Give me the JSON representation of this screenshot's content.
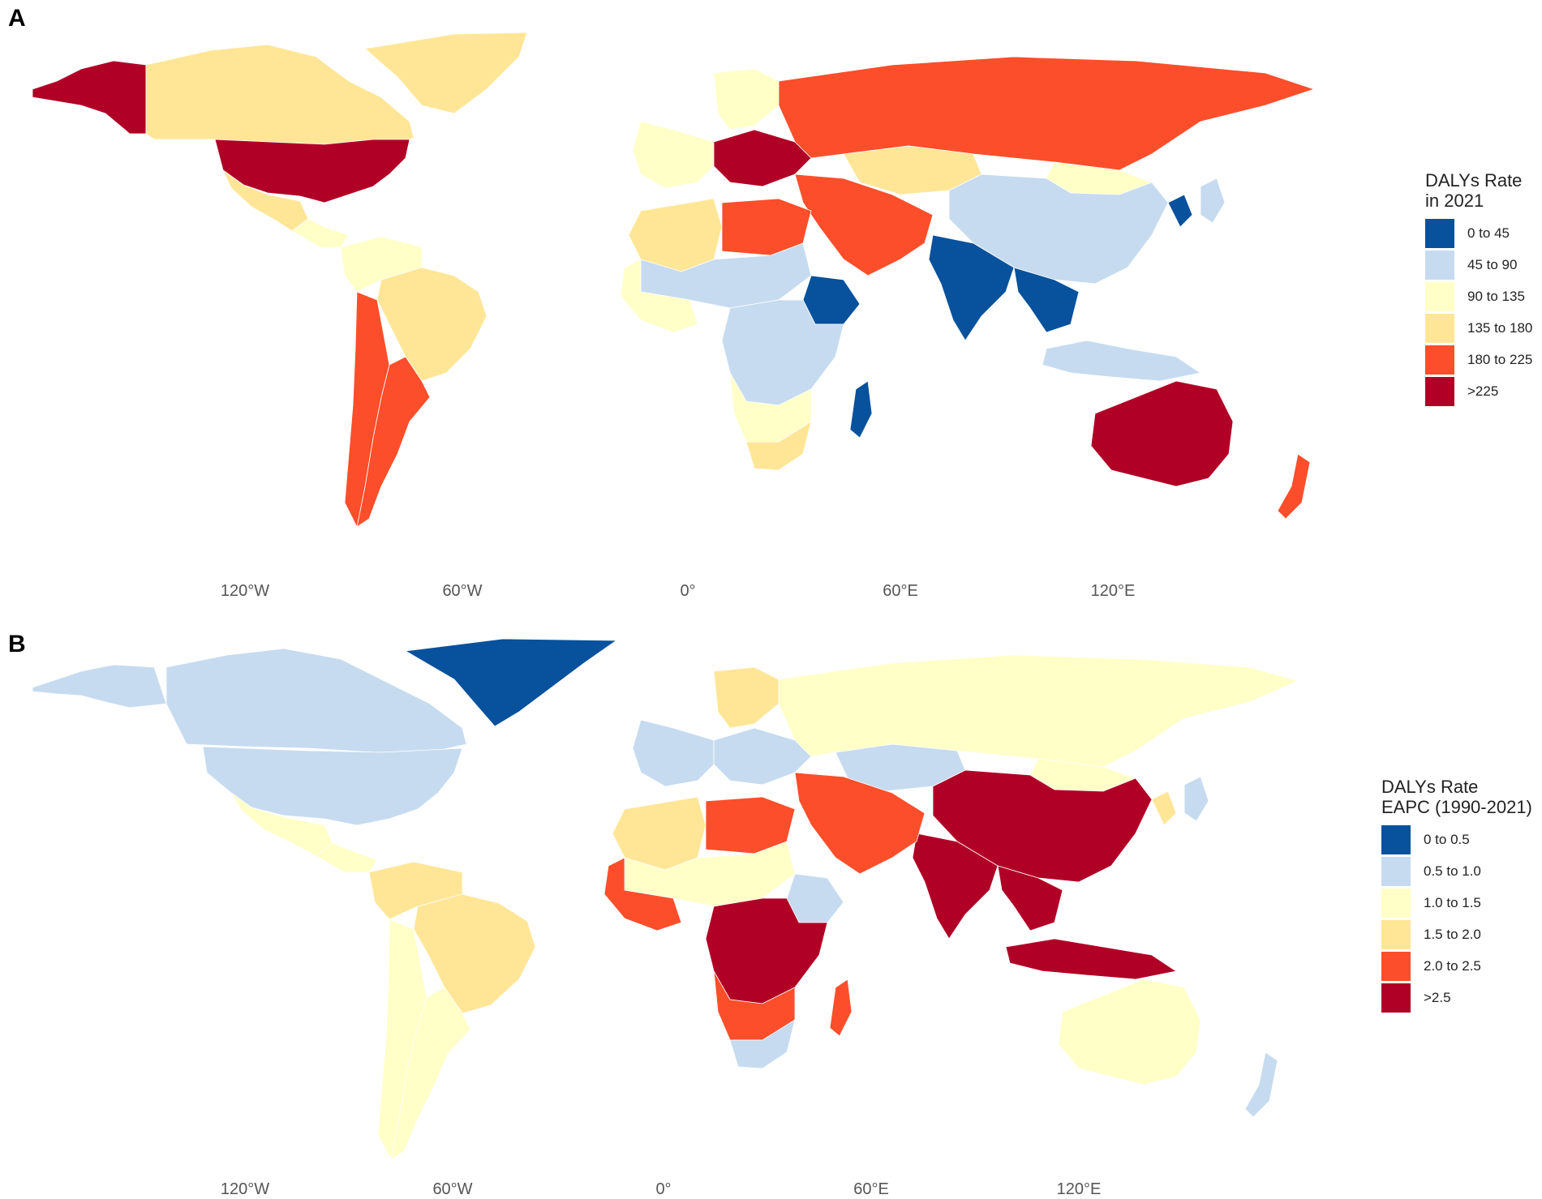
{
  "colors": {
    "c1": "#08519c",
    "c2": "#c6dbef",
    "c3": "#ffffc7",
    "c4": "#ffe697",
    "c5": "#fc4e2a",
    "c6": "#b10026"
  },
  "panel_a": {
    "letter": "A",
    "legend": {
      "title_line1": "DALYs Rate",
      "title_line2": "in 2021",
      "items": [
        {
          "label": "0 to 45",
          "color": "c1"
        },
        {
          "label": "45 to 90",
          "color": "c2"
        },
        {
          "label": "90 to 135",
          "color": "c3"
        },
        {
          "label": "135 to 180",
          "color": "c4"
        },
        {
          "label": "180 to 225",
          "color": "c5"
        },
        {
          "label": ">225",
          "color": "c6"
        }
      ]
    },
    "x_ticks": [
      "120°W",
      "60°W",
      "0°",
      "60°E",
      "120°E"
    ],
    "regions": {
      "alaska": "c6",
      "canada": "c4",
      "greenland": "c4",
      "usa": "c6",
      "mexico": "c4",
      "central_america": "c3",
      "south_america_north": "c3",
      "brazil": "c4",
      "argentina": "c5",
      "chile": "c5",
      "europe_west": "c3",
      "scandinavia": "c3",
      "east_europe": "c6",
      "russia": "c5",
      "kazakhstan": "c4",
      "china": "c2",
      "mongolia": "c3",
      "korea": "c1",
      "japan": "c2",
      "india": "c1",
      "southeast_asia": "c1",
      "indonesia": "c2",
      "middle_east": "c5",
      "north_africa_west": "c4",
      "north_africa_east": "c5",
      "sahel": "c2",
      "west_africa": "c3",
      "ethiopia": "c1",
      "central_africa": "c2",
      "southern_africa": "c3",
      "south_africa": "c4",
      "madagascar": "c1",
      "australia": "c6",
      "new_zealand": "c5"
    }
  },
  "panel_b": {
    "letter": "B",
    "legend": {
      "title_line1": "DALYs Rate",
      "title_line2": "EAPC (1990-2021)",
      "items": [
        {
          "label": "0 to 0.5",
          "color": "c1"
        },
        {
          "label": "0.5 to 1.0",
          "color": "c2"
        },
        {
          "label": "1.0 to 1.5",
          "color": "c3"
        },
        {
          "label": "1.5 to 2.0",
          "color": "c4"
        },
        {
          "label": "2.0 to 2.5",
          "color": "c5"
        },
        {
          "label": ">2.5",
          "color": "c6"
        }
      ]
    },
    "x_ticks": [
      "120°W",
      "60°W",
      "0°",
      "60°E",
      "120°E"
    ],
    "regions": {
      "alaska": "c2",
      "canada": "c2",
      "greenland": "c1",
      "usa": "c2",
      "mexico": "c3",
      "central_america": "c3",
      "south_america_north": "c4",
      "brazil": "c4",
      "argentina": "c3",
      "chile": "c3",
      "europe_west": "c2",
      "scandinavia": "c4",
      "east_europe": "c2",
      "russia": "c3",
      "kazakhstan": "c2",
      "china": "c6",
      "mongolia": "c3",
      "korea": "c4",
      "japan": "c2",
      "india": "c6",
      "southeast_asia": "c6",
      "indonesia": "c6",
      "middle_east": "c5",
      "north_africa_west": "c4",
      "north_africa_east": "c5",
      "sahel": "c3",
      "west_africa": "c5",
      "ethiopia": "c2",
      "central_africa": "c6",
      "southern_africa": "c5",
      "south_africa": "c2",
      "madagascar": "c5",
      "australia": "c3",
      "new_zealand": "c2"
    }
  }
}
